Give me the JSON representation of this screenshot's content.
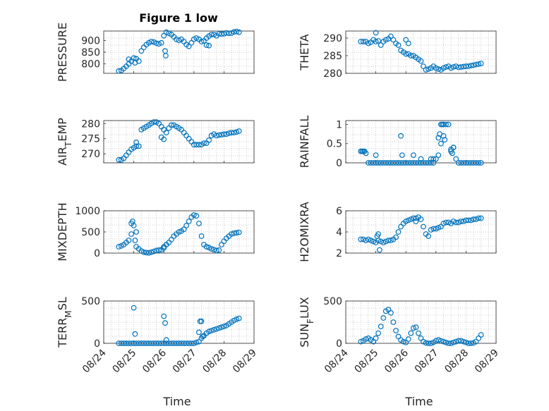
{
  "figure": {
    "title": "Figure 1 low",
    "xlabel": "Time",
    "marker_color": "#0072bd",
    "x_ticks": [
      "08/24",
      "08/25",
      "08/26",
      "08/27",
      "08/28",
      "08/29"
    ]
  },
  "chart_data": [
    {
      "type": "scatter",
      "ylabel": "PRESSURE",
      "title": "Figure 1 low",
      "ylim": [
        760,
        940
      ],
      "y_ticks": [
        "800",
        "850",
        "900"
      ],
      "x_ticks": [
        "08/24",
        "08/25",
        "08/26",
        "08/27",
        "08/28",
        "08/29"
      ],
      "grid": true,
      "x": [
        "08/24 12:00",
        "08/24 14:00",
        "08/24 16:00",
        "08/24 18:00",
        "08/24 20:00",
        "08/24 22:00",
        "08/25 00:00",
        "08/25 02:00",
        "08/25 04:00",
        "08/25 06:00",
        "08/25 08:00",
        "08/25 10:00",
        "08/25 12:00",
        "08/25 14:00",
        "08/25 16:00",
        "08/25 18:00",
        "08/25 20:00",
        "08/25 22:00",
        "08/26 00:00",
        "08/26 02:00",
        "08/26 04:00",
        "08/26 06:00",
        "08/26 08:00",
        "08/26 10:00",
        "08/26 12:00",
        "08/26 14:00",
        "08/26 16:00",
        "08/26 18:00",
        "08/26 20:00",
        "08/26 22:00",
        "08/27 00:00",
        "08/27 02:00",
        "08/27 04:00",
        "08/27 06:00",
        "08/27 08:00",
        "08/27 10:00",
        "08/27 12:00",
        "08/27 14:00",
        "08/27 16:00",
        "08/27 18:00",
        "08/27 20:00",
        "08/27 22:00",
        "08/28 00:00",
        "08/28 02:00",
        "08/28 04:00",
        "08/28 06:00",
        "08/28 08:00",
        "08/28 10:00",
        "08/28 12:00",
        "08/24 20:00",
        "08/25 01:00",
        "08/26 01:00",
        "08/26 01:30",
        "08/27 10:00",
        "08/27 12:00"
      ],
      "y": [
        770,
        772,
        780,
        790,
        800,
        812,
        825,
        822,
        812,
        855,
        870,
        882,
        890,
        895,
        893,
        888,
        885,
        890,
        920,
        935,
        930,
        925,
        915,
        905,
        900,
        905,
        895,
        882,
        875,
        890,
        905,
        910,
        905,
        895,
        898,
        910,
        918,
        925,
        925,
        920,
        928,
        927,
        928,
        932,
        930,
        931,
        936,
        938,
        935,
        820,
        805,
        855,
        835,
        880,
        878
      ]
    },
    {
      "type": "scatter",
      "ylabel": "THETA",
      "ylim": [
        280,
        292
      ],
      "y_ticks": [
        "280",
        "285",
        "290"
      ],
      "x_ticks": [
        "08/24",
        "08/25",
        "08/26",
        "08/27",
        "08/28",
        "08/29"
      ],
      "grid": true,
      "x": [
        "08/24 12:00",
        "08/24 14:00",
        "08/24 16:00",
        "08/24 18:00",
        "08/24 20:00",
        "08/24 22:00",
        "08/25 00:00",
        "08/25 02:00",
        "08/25 04:00",
        "08/25 06:00",
        "08/25 08:00",
        "08/25 10:00",
        "08/25 12:00",
        "08/25 14:00",
        "08/25 16:00",
        "08/25 18:00",
        "08/25 20:00",
        "08/25 22:00",
        "08/26 00:00",
        "08/26 02:00",
        "08/26 04:00",
        "08/26 06:00",
        "08/26 08:00",
        "08/26 10:00",
        "08/26 12:00",
        "08/26 14:00",
        "08/26 16:00",
        "08/26 18:00",
        "08/26 20:00",
        "08/26 22:00",
        "08/27 00:00",
        "08/27 02:00",
        "08/27 04:00",
        "08/27 06:00",
        "08/27 08:00",
        "08/27 10:00",
        "08/27 12:00",
        "08/27 14:00",
        "08/27 16:00",
        "08/27 18:00",
        "08/27 20:00",
        "08/27 22:00",
        "08/28 00:00",
        "08/28 02:00",
        "08/28 04:00",
        "08/28 06:00",
        "08/28 08:00",
        "08/28 10:00",
        "08/28 12:00",
        "08/25 00:00",
        "08/26 00:00",
        "08/26 02:00"
      ],
      "y": [
        289,
        289,
        289,
        288.5,
        288.8,
        289.5,
        289.0,
        289.2,
        288.0,
        289.0,
        289.5,
        289.8,
        290.5,
        289.5,
        288.5,
        288.0,
        286.5,
        286.0,
        285.5,
        285.5,
        285.0,
        285.0,
        284.5,
        284.0,
        283.5,
        282.0,
        281.0,
        281.2,
        281.5,
        282.0,
        281.5,
        281.2,
        281.0,
        281.5,
        281.8,
        282.0,
        281.5,
        281.8,
        282.0,
        281.7,
        281.8,
        281.9,
        282.0,
        282.0,
        282.2,
        282.3,
        282.5,
        282.6,
        282.8,
        291.5,
        289.5,
        288.5
      ]
    },
    {
      "type": "scatter",
      "ylabel": "AIR_TEMP",
      "ylim": [
        267,
        281
      ],
      "y_ticks": [
        "270",
        "275",
        "280"
      ],
      "x_ticks": [
        "08/24",
        "08/25",
        "08/26",
        "08/27",
        "08/28",
        "08/29"
      ],
      "grid": true,
      "x": [
        "08/24 12:00",
        "08/24 14:00",
        "08/24 16:00",
        "08/24 18:00",
        "08/24 20:00",
        "08/24 22:00",
        "08/25 00:00",
        "08/25 02:00",
        "08/25 04:00",
        "08/25 06:00",
        "08/25 08:00",
        "08/25 10:00",
        "08/25 12:00",
        "08/25 14:00",
        "08/25 16:00",
        "08/25 18:00",
        "08/25 20:00",
        "08/25 22:00",
        "08/26 00:00",
        "08/26 02:00",
        "08/26 04:00",
        "08/26 06:00",
        "08/26 08:00",
        "08/26 10:00",
        "08/26 12:00",
        "08/26 14:00",
        "08/26 16:00",
        "08/26 18:00",
        "08/26 20:00",
        "08/26 22:00",
        "08/27 00:00",
        "08/27 02:00",
        "08/27 04:00",
        "08/27 06:00",
        "08/27 08:00",
        "08/27 10:00",
        "08/27 12:00",
        "08/27 14:00",
        "08/27 16:00",
        "08/27 18:00",
        "08/27 20:00",
        "08/27 22:00",
        "08/28 00:00",
        "08/28 02:00",
        "08/28 04:00",
        "08/28 06:00",
        "08/28 08:00",
        "08/28 10:00",
        "08/28 12:00",
        "08/25 02:00",
        "08/25 22:00",
        "08/26 00:00"
      ],
      "y": [
        268,
        268,
        268.5,
        269.5,
        270.5,
        271.5,
        272,
        272.5,
        272.5,
        278,
        278.5,
        279,
        279.5,
        280,
        280.5,
        280.5,
        280,
        279,
        278,
        277,
        278.5,
        279.5,
        279.5,
        279,
        278.5,
        278,
        277,
        276,
        275,
        274,
        273,
        273,
        273,
        273,
        273.5,
        273.5,
        274.5,
        276,
        276.5,
        276,
        276.2,
        276.3,
        276.5,
        276.5,
        276.8,
        277,
        277,
        277.2,
        277.5,
        273.8,
        275.5,
        274.8
      ]
    },
    {
      "type": "scatter",
      "ylabel": "RAINFALL",
      "ylim": [
        0,
        1.1
      ],
      "y_ticks": [
        "0",
        "0.5",
        "1"
      ],
      "x_ticks": [
        "08/24",
        "08/25",
        "08/26",
        "08/27",
        "08/28",
        "08/29"
      ],
      "grid": true,
      "x": [
        "08/24 12:00",
        "08/24 14:00",
        "08/24 16:00",
        "08/24 18:00",
        "08/24 20:00",
        "08/24 22:00",
        "08/25 00:00",
        "08/25 02:00",
        "08/25 04:00",
        "08/25 06:00",
        "08/25 08:00",
        "08/25 10:00",
        "08/25 12:00",
        "08/25 14:00",
        "08/25 16:00",
        "08/25 18:00",
        "08/25 20:00",
        "08/25 22:00",
        "08/26 00:00",
        "08/26 02:00",
        "08/26 04:00",
        "08/26 06:00",
        "08/26 08:00",
        "08/26 10:00",
        "08/26 12:00",
        "08/26 14:00",
        "08/26 16:00",
        "08/26 18:00",
        "08/26 20:00",
        "08/26 22:00",
        "08/27 00:00",
        "08/27 02:00",
        "08/27 04:00",
        "08/27 06:00",
        "08/27 08:00",
        "08/27 10:00",
        "08/27 12:00",
        "08/27 14:00",
        "08/27 16:00",
        "08/27 18:00",
        "08/27 20:00",
        "08/27 22:00",
        "08/28 00:00",
        "08/28 02:00",
        "08/28 04:00",
        "08/28 06:00",
        "08/28 08:00",
        "08/28 10:00",
        "08/28 12:00",
        "08/24 13:00",
        "08/24 15:00",
        "08/25 00:00",
        "08/25 20:00",
        "08/25 21:00",
        "08/26 06:00",
        "08/26 12:00",
        "08/26 20:00",
        "08/26 22:00",
        "08/27 02:00",
        "08/27 03:00",
        "08/27 04:00",
        "08/27 05:00",
        "08/27 06:00",
        "08/27 07:00",
        "08/27 12:00",
        "08/27 13:00",
        "08/27 14:00"
      ],
      "y": [
        0.3,
        0.3,
        0.25,
        0,
        0,
        0,
        0,
        0,
        0,
        0,
        0,
        0,
        0,
        0,
        0,
        0,
        0,
        0,
        0,
        0,
        0,
        0,
        0,
        0,
        0,
        0,
        0,
        0,
        0,
        0,
        0.1,
        0.2,
        0.5,
        0.7,
        1.0,
        1.0,
        0.3,
        0.4,
        0.1,
        0,
        0,
        0,
        0,
        0,
        0,
        0,
        0,
        0,
        0,
        0.3,
        0.3,
        0.2,
        0.7,
        0.2,
        0.2,
        0.1,
        0.1,
        0.1,
        0.65,
        0.75,
        1.0,
        1.0,
        1.0,
        0.6,
        0.35,
        0.25,
        0.4
      ]
    },
    {
      "type": "scatter",
      "ylabel": "MIXDEPTH",
      "ylim": [
        0,
        1000
      ],
      "y_ticks": [
        "0",
        "500",
        "1000"
      ],
      "x_ticks": [
        "08/24",
        "08/25",
        "08/26",
        "08/27",
        "08/28",
        "08/29"
      ],
      "grid": true,
      "x": [
        "08/24 12:00",
        "08/24 14:00",
        "08/24 16:00",
        "08/24 18:00",
        "08/24 20:00",
        "08/24 22:00",
        "08/25 00:00",
        "08/25 02:00",
        "08/25 04:00",
        "08/25 06:00",
        "08/25 08:00",
        "08/25 10:00",
        "08/25 12:00",
        "08/25 14:00",
        "08/25 16:00",
        "08/25 18:00",
        "08/25 20:00",
        "08/25 22:00",
        "08/26 00:00",
        "08/26 02:00",
        "08/26 04:00",
        "08/26 06:00",
        "08/26 08:00",
        "08/26 10:00",
        "08/26 12:00",
        "08/26 14:00",
        "08/26 16:00",
        "08/26 18:00",
        "08/26 20:00",
        "08/26 22:00",
        "08/27 00:00",
        "08/27 02:00",
        "08/27 04:00",
        "08/27 06:00",
        "08/27 08:00",
        "08/27 10:00",
        "08/27 12:00",
        "08/27 14:00",
        "08/27 16:00",
        "08/27 18:00",
        "08/27 20:00",
        "08/27 22:00",
        "08/28 00:00",
        "08/28 02:00",
        "08/28 04:00",
        "08/28 06:00",
        "08/28 08:00",
        "08/28 10:00",
        "08/28 12:00",
        "08/24 22:00",
        "08/24 23:00",
        "08/25 01:00",
        "08/25 02:00",
        "08/26 00:00",
        "08/26 02:00"
      ],
      "y": [
        150,
        170,
        200,
        250,
        300,
        450,
        650,
        500,
        100,
        50,
        20,
        10,
        5,
        20,
        40,
        60,
        70,
        80,
        120,
        200,
        250,
        320,
        400,
        450,
        500,
        520,
        560,
        650,
        750,
        850,
        900,
        880,
        700,
        400,
        200,
        150,
        130,
        100,
        80,
        60,
        70,
        200,
        280,
        350,
        400,
        450,
        470,
        480,
        490,
        700,
        750,
        300,
        150,
        150,
        200
      ]
    },
    {
      "type": "scatter",
      "ylabel": "H2OMIXRA",
      "ylim": [
        2,
        6
      ],
      "y_ticks": [
        "2",
        "4",
        "6"
      ],
      "x_ticks": [
        "08/24",
        "08/25",
        "08/26",
        "08/27",
        "08/28",
        "08/29"
      ],
      "grid": true,
      "x": [
        "08/24 12:00",
        "08/24 14:00",
        "08/24 16:00",
        "08/24 18:00",
        "08/24 20:00",
        "08/24 22:00",
        "08/25 00:00",
        "08/25 02:00",
        "08/25 04:00",
        "08/25 06:00",
        "08/25 08:00",
        "08/25 10:00",
        "08/25 12:00",
        "08/25 14:00",
        "08/25 16:00",
        "08/25 18:00",
        "08/25 20:00",
        "08/25 22:00",
        "08/26 00:00",
        "08/26 02:00",
        "08/26 04:00",
        "08/26 06:00",
        "08/26 08:00",
        "08/26 10:00",
        "08/26 12:00",
        "08/26 14:00",
        "08/26 16:00",
        "08/26 18:00",
        "08/26 20:00",
        "08/26 22:00",
        "08/27 00:00",
        "08/27 02:00",
        "08/27 04:00",
        "08/27 06:00",
        "08/27 08:00",
        "08/27 10:00",
        "08/27 12:00",
        "08/27 14:00",
        "08/27 16:00",
        "08/27 18:00",
        "08/27 20:00",
        "08/27 22:00",
        "08/28 00:00",
        "08/28 02:00",
        "08/28 04:00",
        "08/28 06:00",
        "08/28 08:00",
        "08/28 10:00",
        "08/28 12:00",
        "08/25 01:00",
        "08/25 02:00",
        "08/25 03:00",
        "08/26 08:00"
      ],
      "y": [
        3.3,
        3.3,
        3.2,
        3.3,
        3.2,
        3.1,
        3.0,
        3.2,
        3.1,
        3.0,
        3.1,
        3.2,
        3.2,
        3.3,
        3.5,
        4.0,
        4.5,
        4.8,
        5.0,
        5.1,
        5.2,
        5.3,
        5.3,
        5.4,
        5.2,
        4.5,
        3.8,
        3.6,
        4.2,
        4.3,
        4.3,
        4.4,
        4.5,
        4.8,
        4.9,
        4.9,
        4.8,
        5.0,
        4.9,
        4.9,
        5.0,
        5.0,
        5.1,
        5.1,
        5.1,
        5.2,
        5.2,
        5.3,
        5.3,
        3.6,
        3.8,
        2.3,
        5.0
      ]
    },
    {
      "type": "scatter",
      "ylabel": "TERR_MSL",
      "ylim": [
        0,
        500
      ],
      "y_ticks": [
        "0",
        "500"
      ],
      "x_ticks": [
        "08/24",
        "08/25",
        "08/26",
        "08/27",
        "08/28",
        "08/29"
      ],
      "grid": true,
      "x": [
        "08/24 12:00",
        "08/24 14:00",
        "08/24 16:00",
        "08/24 18:00",
        "08/24 20:00",
        "08/24 22:00",
        "08/25 00:00",
        "08/25 02:00",
        "08/25 04:00",
        "08/25 06:00",
        "08/25 08:00",
        "08/25 10:00",
        "08/25 12:00",
        "08/25 14:00",
        "08/25 16:00",
        "08/25 18:00",
        "08/25 20:00",
        "08/25 22:00",
        "08/26 00:00",
        "08/26 02:00",
        "08/26 04:00",
        "08/26 06:00",
        "08/26 08:00",
        "08/26 10:00",
        "08/26 12:00",
        "08/26 14:00",
        "08/26 16:00",
        "08/26 18:00",
        "08/26 20:00",
        "08/26 22:00",
        "08/27 00:00",
        "08/27 02:00",
        "08/27 04:00",
        "08/27 06:00",
        "08/27 08:00",
        "08/27 10:00",
        "08/27 12:00",
        "08/27 14:00",
        "08/27 16:00",
        "08/27 18:00",
        "08/27 20:00",
        "08/27 22:00",
        "08/28 00:00",
        "08/28 02:00",
        "08/28 04:00",
        "08/28 06:00",
        "08/28 08:00",
        "08/28 10:00",
        "08/28 12:00",
        "08/25 00:00",
        "08/25 01:00",
        "08/26 00:00",
        "08/26 01:00",
        "08/26 02:00",
        "08/27 04:00",
        "08/27 05:00",
        "08/27 06:00",
        "08/27 07:00"
      ],
      "y": [
        0,
        0,
        0,
        0,
        0,
        0,
        0,
        0,
        0,
        0,
        0,
        0,
        0,
        0,
        0,
        0,
        0,
        0,
        0,
        0,
        0,
        0,
        0,
        0,
        0,
        0,
        0,
        0,
        0,
        0,
        0,
        10,
        20,
        60,
        90,
        120,
        140,
        150,
        160,
        170,
        180,
        190,
        200,
        210,
        230,
        250,
        270,
        285,
        295,
        420,
        110,
        320,
        240,
        40,
        130,
        260,
        260,
        80
      ]
    },
    {
      "type": "scatter",
      "ylabel": "SUN_FLUX",
      "ylim": [
        0,
        500
      ],
      "y_ticks": [
        "0",
        "500"
      ],
      "x_ticks": [
        "08/24",
        "08/25",
        "08/26",
        "08/27",
        "08/28",
        "08/29"
      ],
      "grid": true,
      "x": [
        "08/24 12:00",
        "08/24 14:00",
        "08/24 16:00",
        "08/24 18:00",
        "08/24 20:00",
        "08/24 22:00",
        "08/25 00:00",
        "08/25 02:00",
        "08/25 04:00",
        "08/25 06:00",
        "08/25 08:00",
        "08/25 10:00",
        "08/25 12:00",
        "08/25 14:00",
        "08/25 16:00",
        "08/25 18:00",
        "08/25 20:00",
        "08/25 22:00",
        "08/26 00:00",
        "08/26 02:00",
        "08/26 04:00",
        "08/26 06:00",
        "08/26 08:00",
        "08/26 10:00",
        "08/26 12:00",
        "08/26 14:00",
        "08/26 16:00",
        "08/26 18:00",
        "08/26 20:00",
        "08/26 22:00",
        "08/27 00:00",
        "08/27 02:00",
        "08/27 04:00",
        "08/27 06:00",
        "08/27 08:00",
        "08/27 10:00",
        "08/27 12:00",
        "08/27 14:00",
        "08/27 16:00",
        "08/27 18:00",
        "08/27 20:00",
        "08/27 22:00",
        "08/28 00:00",
        "08/28 02:00",
        "08/28 04:00",
        "08/28 06:00",
        "08/28 08:00",
        "08/28 10:00",
        "08/28 12:00"
      ],
      "y": [
        20,
        30,
        50,
        60,
        40,
        20,
        60,
        120,
        200,
        300,
        380,
        400,
        360,
        250,
        150,
        80,
        40,
        20,
        10,
        50,
        120,
        180,
        190,
        120,
        60,
        20,
        5,
        0,
        0,
        10,
        30,
        40,
        30,
        20,
        10,
        0,
        0,
        10,
        20,
        30,
        30,
        20,
        10,
        0,
        0,
        5,
        20,
        60,
        100
      ]
    }
  ]
}
